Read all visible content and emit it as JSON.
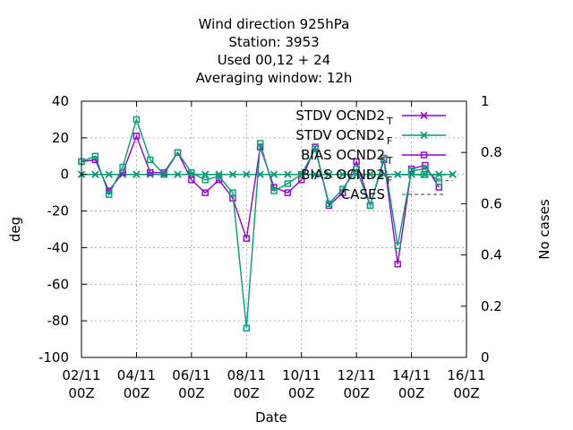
{
  "chart_data": {
    "type": "line",
    "title_lines": [
      "Wind direction 925hPa",
      "Station:     3953",
      "Used  00,12  + 24",
      "Averaging window: 12h"
    ],
    "xlabel": "Date",
    "ylabel": "deg",
    "y2label": "No cases",
    "ylim": [
      -100,
      40
    ],
    "y2lim": [
      0,
      1
    ],
    "xlim": [
      0,
      28
    ],
    "grid": true,
    "legend_position": "top-right",
    "yticks": [
      "-100",
      "-80",
      "-60",
      "-40",
      "-20",
      "0",
      "20",
      "40"
    ],
    "y2ticks": [
      "0",
      "0.2",
      "0.4",
      "0.6",
      "0.8",
      "1"
    ],
    "xticks": [
      {
        "pos": 0,
        "line1": "02/11",
        "line2": "00Z"
      },
      {
        "pos": 4,
        "line1": "04/11",
        "line2": "00Z"
      },
      {
        "pos": 8,
        "line1": "06/11",
        "line2": "00Z"
      },
      {
        "pos": 12,
        "line1": "08/11",
        "line2": "00Z"
      },
      {
        "pos": 16,
        "line1": "10/11",
        "line2": "00Z"
      },
      {
        "pos": 20,
        "line1": "12/11",
        "line2": "00Z"
      },
      {
        "pos": 24,
        "line1": "14/11",
        "line2": "00Z"
      },
      {
        "pos": 28,
        "line1": "16/11",
        "line2": "00Z"
      }
    ],
    "x": [
      0,
      1,
      2,
      3,
      4,
      5,
      6,
      7,
      8,
      9,
      10,
      11,
      12,
      13,
      14,
      15,
      16,
      17,
      18,
      19,
      20,
      21,
      22,
      23,
      24,
      25,
      26,
      27
    ],
    "series": [
      {
        "name": "STDV OCND2",
        "sub": "T",
        "color": "#9400d3",
        "marker": "x",
        "values": [
          0,
          0,
          0,
          0,
          0,
          0,
          0,
          0,
          0,
          0,
          0,
          0,
          0,
          0,
          0,
          0,
          0,
          0,
          0,
          0,
          0,
          0,
          0,
          0,
          0,
          0,
          0,
          0
        ]
      },
      {
        "name": "STDV OCND2",
        "sub": "F",
        "color": "#009e73",
        "marker": "x",
        "values": [
          0,
          0,
          0,
          0,
          0,
          0,
          0,
          0,
          0,
          0,
          0,
          0,
          0,
          0,
          0,
          0,
          0,
          0,
          0,
          0,
          0,
          0,
          0,
          0,
          0,
          0,
          0,
          0
        ]
      },
      {
        "name": "BIAS OCND2",
        "sub": "T",
        "color": "#9400d3",
        "marker": "square",
        "values": [
          7,
          8,
          -9,
          1,
          21,
          1,
          1,
          12,
          -3,
          -10,
          -3,
          -13,
          -35,
          15,
          -7,
          -10,
          -3,
          15,
          -17,
          -10,
          7,
          -17,
          8,
          -49,
          3,
          5,
          -7,
          null
        ]
      },
      {
        "name": "BIAS OCND2",
        "sub": "F",
        "color": "#009e73",
        "marker": "square",
        "values": [
          7,
          10,
          -11,
          4,
          30,
          8,
          0,
          12,
          1,
          -3,
          -1,
          -10,
          -84,
          17,
          -9,
          -5,
          0,
          14,
          -16,
          -8,
          3,
          -17,
          9,
          -39,
          2,
          3,
          -4,
          null
        ]
      },
      {
        "name": "CASES",
        "sub": "",
        "color": "#808080",
        "marker": "none",
        "axis": "y2",
        "values": [
          null,
          null,
          null,
          null,
          null,
          null,
          null,
          null,
          null,
          null,
          null,
          null,
          null,
          null,
          null,
          null,
          null,
          null,
          null,
          null,
          null,
          null,
          null,
          null,
          null,
          null,
          0.69,
          0.69
        ]
      }
    ]
  }
}
